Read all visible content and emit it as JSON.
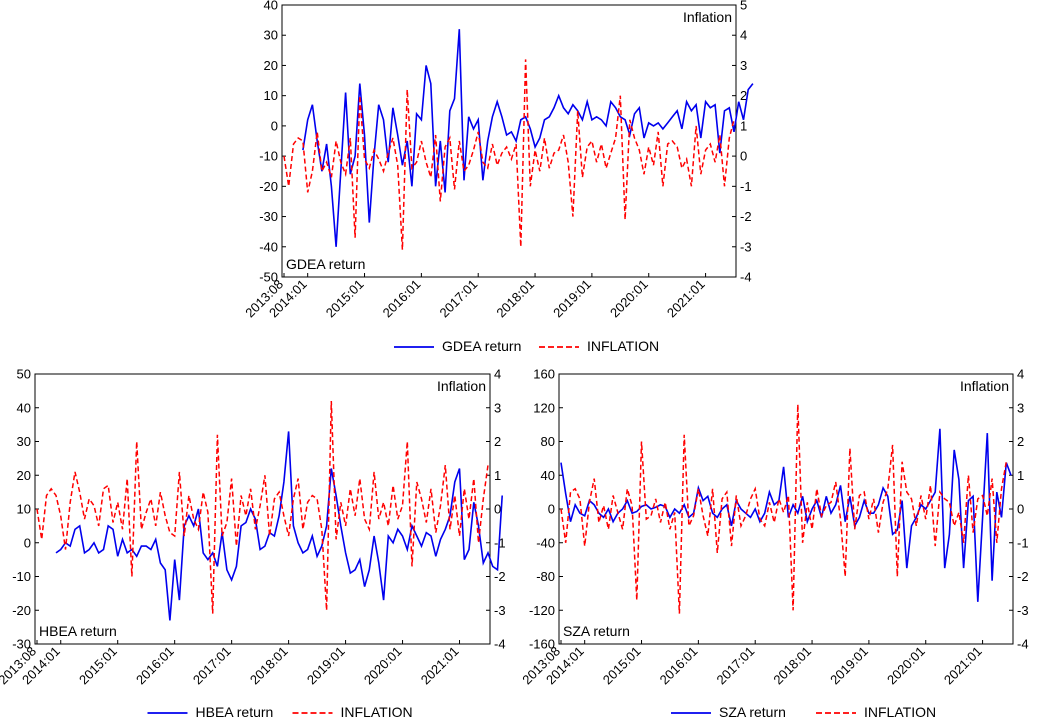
{
  "chart_data": [
    {
      "id": "gdea",
      "type": "line",
      "title": "",
      "panel_label": "GDEA return",
      "right_axis_title": "Inflation",
      "x_ticks": [
        "2013:08",
        "2014:01",
        "2015:01",
        "2016:01",
        "2017:01",
        "2018:01",
        "2019:01",
        "2020:01",
        "2021:01"
      ],
      "ylim_left": [
        -50,
        40
      ],
      "yticks_left": [
        40,
        30,
        20,
        10,
        0,
        -10,
        -20,
        -30,
        -40,
        -50
      ],
      "ylim_right": [
        -4,
        5
      ],
      "yticks_right": [
        5,
        4,
        3,
        2,
        1,
        0,
        -1,
        -2,
        -3,
        -4
      ],
      "legend": [
        "GDEA return",
        "INFLATION"
      ],
      "series": [
        {
          "name": "GDEA return",
          "axis": "left",
          "color": "#0000ee",
          "start_month_index": 4,
          "values": [
            -8,
            2,
            7,
            -5,
            -15,
            -6,
            -20,
            -40,
            -15,
            11,
            -16,
            -10,
            14,
            -3,
            -32,
            -10,
            7,
            2,
            -12,
            6,
            -3,
            -13,
            -5,
            -20,
            4,
            2,
            20,
            14,
            -20,
            -5,
            -22,
            5,
            9,
            32,
            -18,
            3,
            -1,
            2,
            -18,
            -5,
            3,
            8,
            3,
            -3,
            -2,
            -5,
            2,
            3,
            -1,
            -7,
            -4,
            2,
            3,
            6,
            10,
            6,
            4,
            7,
            5,
            2,
            8,
            2,
            3,
            2,
            0,
            8,
            6,
            3,
            2,
            -3,
            4,
            6,
            -4,
            1,
            0,
            1,
            -1,
            1,
            3,
            5,
            -1,
            8,
            5,
            7,
            -4,
            8,
            6,
            7,
            -9,
            5,
            6,
            -2,
            8,
            2,
            12,
            14
          ]
        },
        {
          "name": "INFLATION",
          "axis": "right",
          "color": "#ff0000",
          "start_month_index": 0,
          "values": [
            0,
            -1,
            0.4,
            0.6,
            0.5,
            -1.2,
            -0.5,
            0.8,
            -0.5,
            -0.2,
            -0.7,
            0.5,
            -0.2,
            -0.6,
            0.6,
            -2.7,
            2.0,
            -0.1,
            -0.4,
            0.2,
            -0.1,
            -0.5,
            0.1,
            0.6,
            -0.3,
            -3.1,
            2.2,
            -0.4,
            -0.2,
            0.5,
            -0.2,
            -0.7,
            0.7,
            -1.5,
            0.3,
            0.6,
            -1.1,
            0.5,
            -0.5,
            -0.3,
            0.2,
            0.8,
            -0.2,
            -0.4,
            0.4,
            -0.3,
            0.1,
            0.3,
            -0.1,
            0.4,
            -3.0,
            3.2,
            -1.0,
            0.2,
            -0.5,
            0.6,
            -0.4,
            0.1,
            0.2,
            0.7,
            -0.2,
            -2.0,
            1.5,
            -0.7,
            0.3,
            0.5,
            -0.2,
            0.4,
            -0.4,
            0.1,
            0.6,
            2.0,
            -2.1,
            1.2,
            0.6,
            0.2,
            -0.6,
            0.3,
            -0.3,
            0.8,
            -1.0,
            0.4,
            0.5,
            0.3,
            -0.4,
            -0.1,
            -1.0,
            1.0,
            -0.6,
            0.2,
            0.4,
            -0.2,
            0.7,
            -1.0,
            0.6,
            1.2
          ]
        }
      ]
    },
    {
      "id": "hbea",
      "type": "line",
      "title": "",
      "panel_label": "HBEA return",
      "right_axis_title": "Inflation",
      "x_ticks": [
        "2013:08",
        "2014:01",
        "2015:01",
        "2016:01",
        "2017:01",
        "2018:01",
        "2019:01",
        "2020:01",
        "2021:01"
      ],
      "ylim_left": [
        -30,
        50
      ],
      "yticks_left": [
        50,
        40,
        30,
        20,
        10,
        0,
        -10,
        -20,
        -30
      ],
      "ylim_right": [
        -4,
        4
      ],
      "yticks_right": [
        4,
        3,
        2,
        1,
        0,
        -1,
        -2,
        -3,
        -4
      ],
      "legend": [
        "HBEA return",
        "INFLATION"
      ],
      "series": [
        {
          "name": "HBEA return",
          "axis": "left",
          "color": "#0000ee",
          "start_month_index": 4,
          "values": [
            -3,
            -2,
            0,
            -1,
            4,
            5,
            -3,
            -2,
            0,
            -3,
            -2,
            5,
            4,
            -4,
            1,
            -3,
            -2,
            -4,
            -1,
            -1,
            -2,
            1,
            -6,
            -8,
            -23,
            -5,
            -17,
            5,
            8,
            5,
            10,
            -3,
            -5,
            -3,
            -7,
            3,
            -8,
            -11,
            -7,
            5,
            6,
            10,
            7,
            -2,
            -1,
            3,
            2,
            8,
            18,
            33,
            5,
            0,
            -3,
            -2,
            2,
            -4,
            -1,
            5,
            22,
            14,
            5,
            -3,
            -9,
            -8,
            -5,
            -13,
            -8,
            2,
            -6,
            -17,
            2,
            0,
            4,
            2,
            -2,
            5,
            2,
            -1,
            3,
            2,
            -4,
            1,
            4,
            8,
            18,
            22,
            -5,
            -2,
            12,
            5,
            -6,
            -3,
            -7,
            -8,
            14
          ]
        },
        {
          "name": "INFLATION",
          "axis": "right",
          "color": "#ff0000",
          "start_month_index": 0,
          "values": [
            0,
            -0.9,
            0.4,
            0.6,
            0.4,
            -0.2,
            -1.2,
            0.2,
            1.1,
            0.5,
            -0.3,
            0.3,
            0.1,
            -0.5,
            0.6,
            0.7,
            -0.4,
            0.2,
            -0.6,
            0.9,
            -2.0,
            2.0,
            -0.6,
            -0.1,
            0.3,
            -0.5,
            0.5,
            -0.2,
            -0.7,
            -0.8,
            1.1,
            -0.8,
            0.4,
            -0.3,
            -0.6,
            0.5,
            -0.1,
            -3.1,
            2.2,
            -0.8,
            -0.4,
            0.9,
            -1.1,
            0.4,
            -0.2,
            0.6,
            -0.6,
            0.1,
            1.0,
            -0.8,
            0.3,
            0.5,
            -0.2,
            -0.8,
            0.3,
            0.9,
            -0.6,
            0.2,
            0.4,
            0.3,
            -0.6,
            -3.0,
            3.2,
            -0.9,
            0.2,
            -0.5,
            0.6,
            -0.2,
            0.9,
            -0.3,
            -0.6,
            1.1,
            -0.3,
            0.2,
            -0.5,
            0.7,
            -0.3,
            0.1,
            2.0,
            -1.7,
            0.8,
            0.3,
            -0.4,
            0.6,
            -0.7,
            0.1,
            1.3,
            -0.6,
            0.4,
            -0.8,
            0.6,
            -0.3,
            0.9,
            -1.0,
            0.3,
            1.3
          ]
        }
      ]
    },
    {
      "id": "sza",
      "type": "line",
      "title": "",
      "panel_label": "SZA return",
      "right_axis_title": "Inflation",
      "x_ticks": [
        "2013:08",
        "2014:01",
        "2015:01",
        "2016:01",
        "2017:01",
        "2018:01",
        "2019:01",
        "2020:01",
        "2021:01"
      ],
      "ylim_left": [
        -160,
        160
      ],
      "yticks_left": [
        160,
        120,
        80,
        40,
        0,
        -40,
        -80,
        -120,
        -160
      ],
      "ylim_right": [
        -4,
        4
      ],
      "yticks_right": [
        4,
        3,
        2,
        1,
        0,
        -1,
        -2,
        -3,
        -4
      ],
      "legend": [
        "SZA return",
        "INFLATION"
      ],
      "series": [
        {
          "name": "SZA return",
          "axis": "left",
          "color": "#0000ee",
          "start_month_index": 0,
          "values": [
            55,
            18,
            -15,
            5,
            -5,
            -8,
            10,
            5,
            -5,
            -10,
            0,
            -15,
            -5,
            0,
            10,
            -5,
            -3,
            3,
            5,
            0,
            2,
            5,
            3,
            -10,
            0,
            -5,
            5,
            -10,
            -5,
            25,
            10,
            15,
            -5,
            -10,
            0,
            5,
            -20,
            10,
            0,
            -5,
            -10,
            0,
            -15,
            -5,
            20,
            5,
            10,
            50,
            -10,
            5,
            -5,
            15,
            -15,
            0,
            10,
            -10,
            15,
            -5,
            5,
            28,
            -15,
            15,
            -20,
            -10,
            10,
            -5,
            -5,
            5,
            25,
            15,
            -30,
            -25,
            10,
            -70,
            -20,
            -10,
            5,
            0,
            10,
            20,
            95,
            -70,
            -30,
            70,
            35,
            -70,
            10,
            15,
            -110,
            -10,
            90,
            -85,
            20,
            -10,
            55,
            40
          ]
        },
        {
          "name": "INFLATION",
          "axis": "right",
          "color": "#ff0000",
          "start_month_index": 0,
          "values": [
            0,
            -1,
            0.5,
            0.6,
            0.3,
            -1.1,
            0.2,
            0.9,
            -0.4,
            0.1,
            -0.6,
            0.4,
            -0.1,
            -0.6,
            0.6,
            0.1,
            -2.7,
            2.0,
            -0.3,
            -0.2,
            0.3,
            -0.4,
            0.2,
            -0.6,
            -0.1,
            -3.1,
            2.2,
            -0.5,
            -0.2,
            0.6,
            -0.2,
            -0.8,
            0.6,
            -1.3,
            0.3,
            0.5,
            -1.1,
            0.4,
            -0.5,
            -0.2,
            0.3,
            0.6,
            -0.3,
            -0.5,
            0.2,
            -0.4,
            0.3,
            -0.1,
            0.4,
            -3.0,
            3.1,
            -1.0,
            0.2,
            -0.6,
            0.6,
            -0.2,
            0.1,
            0.2,
            0.8,
            -0.3,
            -2.0,
            1.8,
            -0.6,
            0.4,
            0.5,
            -0.3,
            0.3,
            -0.7,
            0.2,
            0.6,
            1.9,
            -2.0,
            1.4,
            0.5,
            0.3,
            -0.5,
            0.4,
            -0.3,
            0.7,
            -1.1,
            0.5,
            0.3,
            0.2,
            -0.5,
            -0.1,
            -1.0,
            1.0,
            -0.7,
            0.3,
            0.4,
            -0.2,
            0.9,
            -1.0,
            0.6,
            1.4
          ]
        }
      ]
    }
  ]
}
